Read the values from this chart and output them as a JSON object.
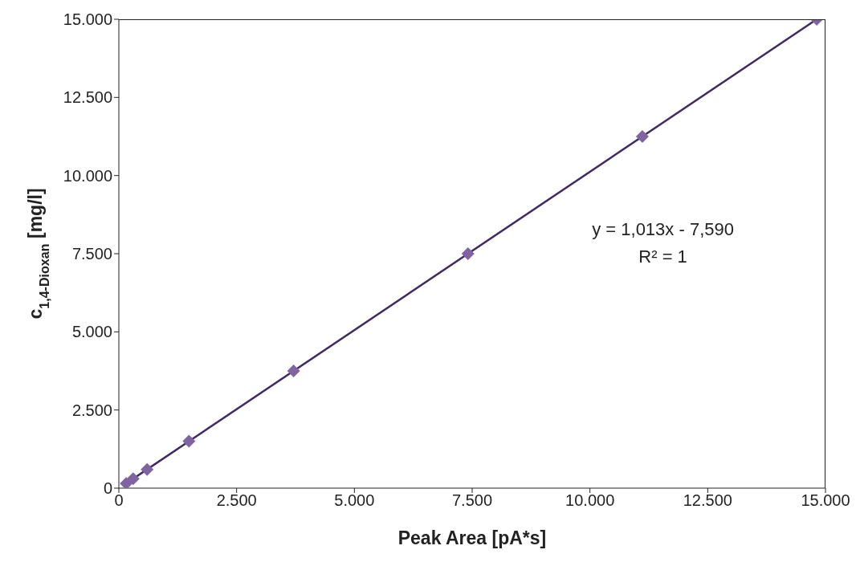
{
  "chart_data": {
    "type": "scatter",
    "xlabel": "Peak Area [pA*s]",
    "ylabel": "c$_{1,4-Dioxan}$ [mg/l]",
    "annotations": [
      "y = 1,013x - 7,590",
      "R² = 1"
    ],
    "series": [
      {
        "color": "#8064a2",
        "marker": "diamond",
        "x": [
          156,
          304,
          600,
          1488,
          3709,
          7411,
          11113,
          14815
        ],
        "values": [
          150,
          300,
          600,
          1500,
          3750,
          7500,
          11250,
          15000
        ]
      },
      {
        "type": "line",
        "color": "#3f2b63",
        "marker": "none",
        "x": [
          156,
          14815
        ],
        "values": [
          150,
          15000
        ]
      }
    ],
    "xlim": [
      0,
      15000
    ],
    "xticks": [
      0,
      {
        "value": 2500,
        "label": "2.500"
      },
      {
        "value": 5000,
        "label": "5.000"
      },
      {
        "value": 7500,
        "label": "7.500"
      },
      {
        "value": 10000,
        "label": "10.000"
      },
      {
        "value": 12500,
        "label": "12.500"
      },
      {
        "value": 15000,
        "label": "15.000"
      }
    ],
    "ylim": [
      0,
      15000
    ],
    "yticks": [
      0,
      {
        "value": 2500,
        "label": "2.500"
      },
      {
        "value": 5000,
        "label": "5.000"
      },
      {
        "value": 7500,
        "label": "7.500"
      },
      {
        "value": 10000,
        "label": "10.000"
      },
      {
        "value": 12500,
        "label": "12.500"
      },
      {
        "value": 15000,
        "label": "15.000"
      }
    ],
    "grid": false
  }
}
